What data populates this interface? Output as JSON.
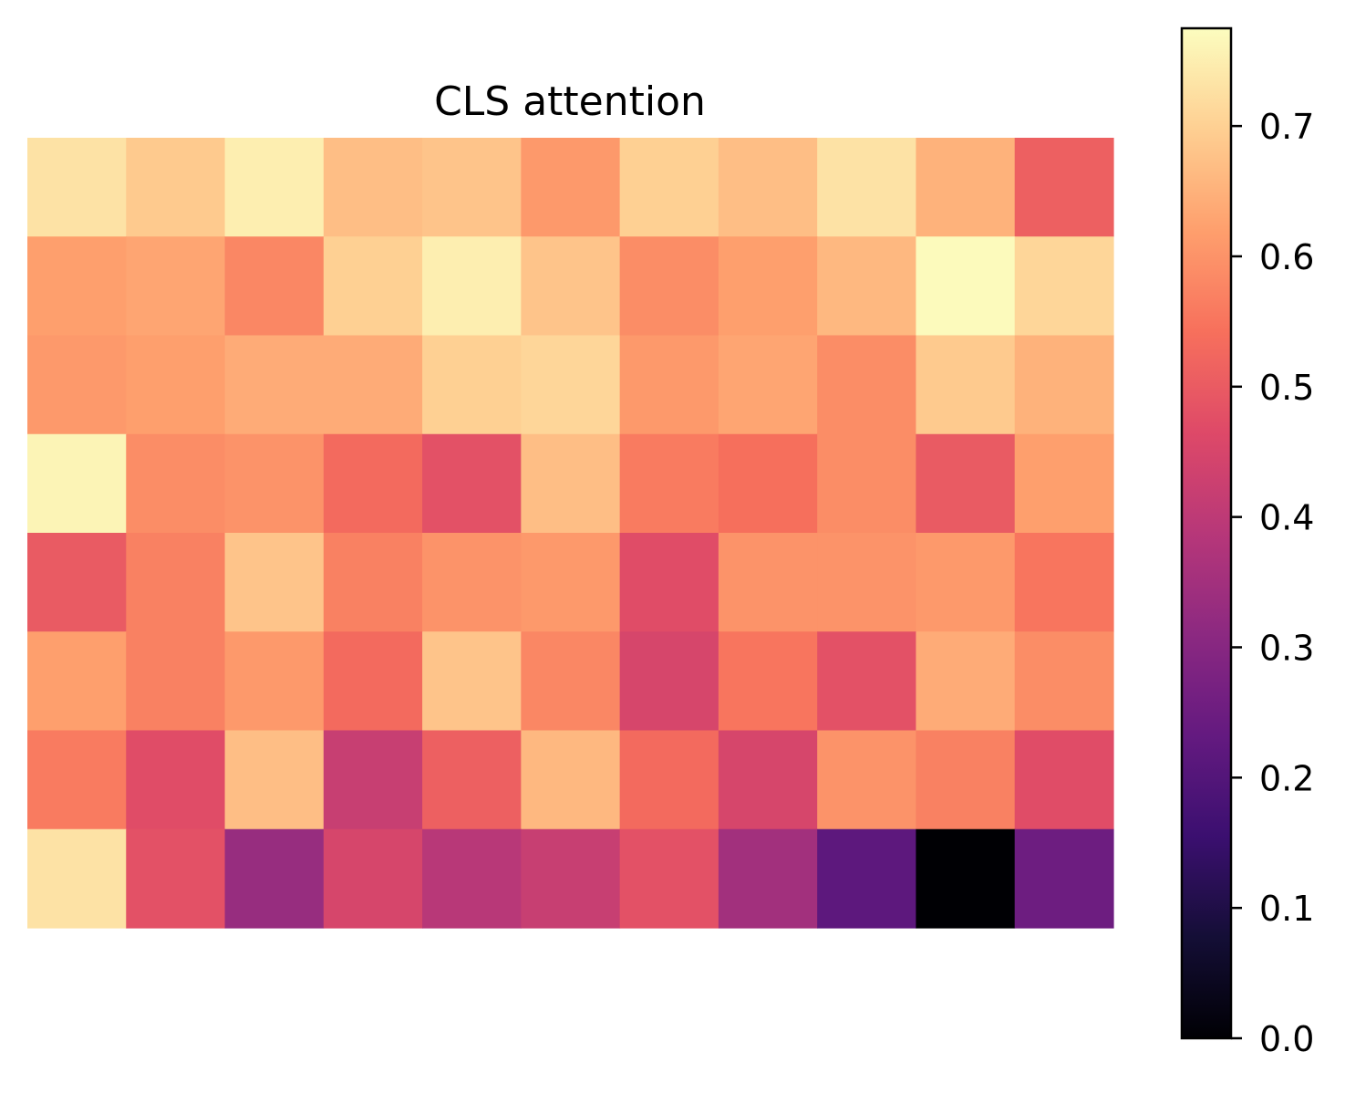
{
  "chart_data": {
    "type": "heatmap",
    "title": "CLS attention",
    "colormap": "magma",
    "rows": 8,
    "cols": 11,
    "values": [
      [
        0.73,
        0.69,
        0.75,
        0.67,
        0.68,
        0.61,
        0.7,
        0.67,
        0.73,
        0.65,
        0.51
      ],
      [
        0.62,
        0.63,
        0.58,
        0.7,
        0.75,
        0.68,
        0.59,
        0.62,
        0.66,
        0.77,
        0.71
      ],
      [
        0.61,
        0.62,
        0.64,
        0.64,
        0.7,
        0.71,
        0.61,
        0.63,
        0.59,
        0.69,
        0.65
      ],
      [
        0.76,
        0.59,
        0.6,
        0.53,
        0.48,
        0.67,
        0.56,
        0.54,
        0.59,
        0.5,
        0.62
      ],
      [
        0.5,
        0.57,
        0.68,
        0.57,
        0.6,
        0.61,
        0.47,
        0.6,
        0.6,
        0.61,
        0.55
      ],
      [
        0.62,
        0.57,
        0.61,
        0.53,
        0.68,
        0.58,
        0.45,
        0.55,
        0.48,
        0.64,
        0.59
      ],
      [
        0.56,
        0.47,
        0.67,
        0.42,
        0.51,
        0.66,
        0.53,
        0.45,
        0.6,
        0.57,
        0.47
      ],
      [
        0.73,
        0.48,
        0.33,
        0.45,
        0.39,
        0.42,
        0.48,
        0.35,
        0.22,
        0.0,
        0.25
      ]
    ],
    "vmin": 0.0,
    "vmax": 0.775,
    "colorbar": {
      "ticks": [
        0.0,
        0.1,
        0.2,
        0.3,
        0.4,
        0.5,
        0.6,
        0.7
      ],
      "tick_labels": [
        "0.0",
        "0.1",
        "0.2",
        "0.3",
        "0.4",
        "0.5",
        "0.6",
        "0.7"
      ]
    },
    "axes_visible": false
  }
}
